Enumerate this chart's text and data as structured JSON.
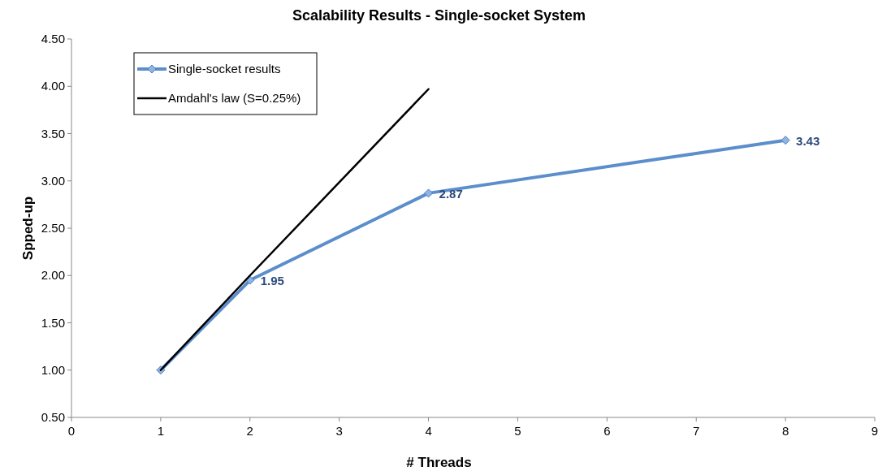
{
  "chart_data": {
    "type": "line",
    "title": "Scalability Results - Single-socket System",
    "xlabel": "# Threads",
    "ylabel": "Spped-up",
    "xlim": [
      0,
      9
    ],
    "xticks": [
      0,
      1,
      2,
      3,
      4,
      5,
      6,
      7,
      8,
      9
    ],
    "ylim": [
      0.5,
      4.5
    ],
    "yticks": [
      {
        "value": 0.5,
        "label": "0.50"
      },
      {
        "value": 1,
        "label": "1.00"
      },
      {
        "value": 1.5,
        "label": "1.50"
      },
      {
        "value": 2,
        "label": "2.00"
      },
      {
        "value": 2.5,
        "label": "2.50"
      },
      {
        "value": 3,
        "label": "3.00"
      },
      {
        "value": 3.5,
        "label": "3.50"
      },
      {
        "value": 4,
        "label": "4.00"
      },
      {
        "value": 4.5,
        "label": "4.50"
      }
    ],
    "grid": false,
    "legend": "top left",
    "line_style": "solid",
    "series": [
      {
        "name": "Single-socket results",
        "color": "#5b8ecb",
        "marker": "diamond",
        "x": [
          1,
          2,
          4,
          8
        ],
        "values": [
          1,
          1.95,
          2.87,
          3.43
        ],
        "value_labels": [
          null,
          "1.95",
          "2.87",
          "3.43"
        ]
      },
      {
        "name": "Amdahl's law (S=0.25%)",
        "color": "#000000",
        "marker": "none",
        "x": [
          1,
          2,
          4
        ],
        "values": [
          1,
          2,
          3.97
        ]
      }
    ]
  }
}
